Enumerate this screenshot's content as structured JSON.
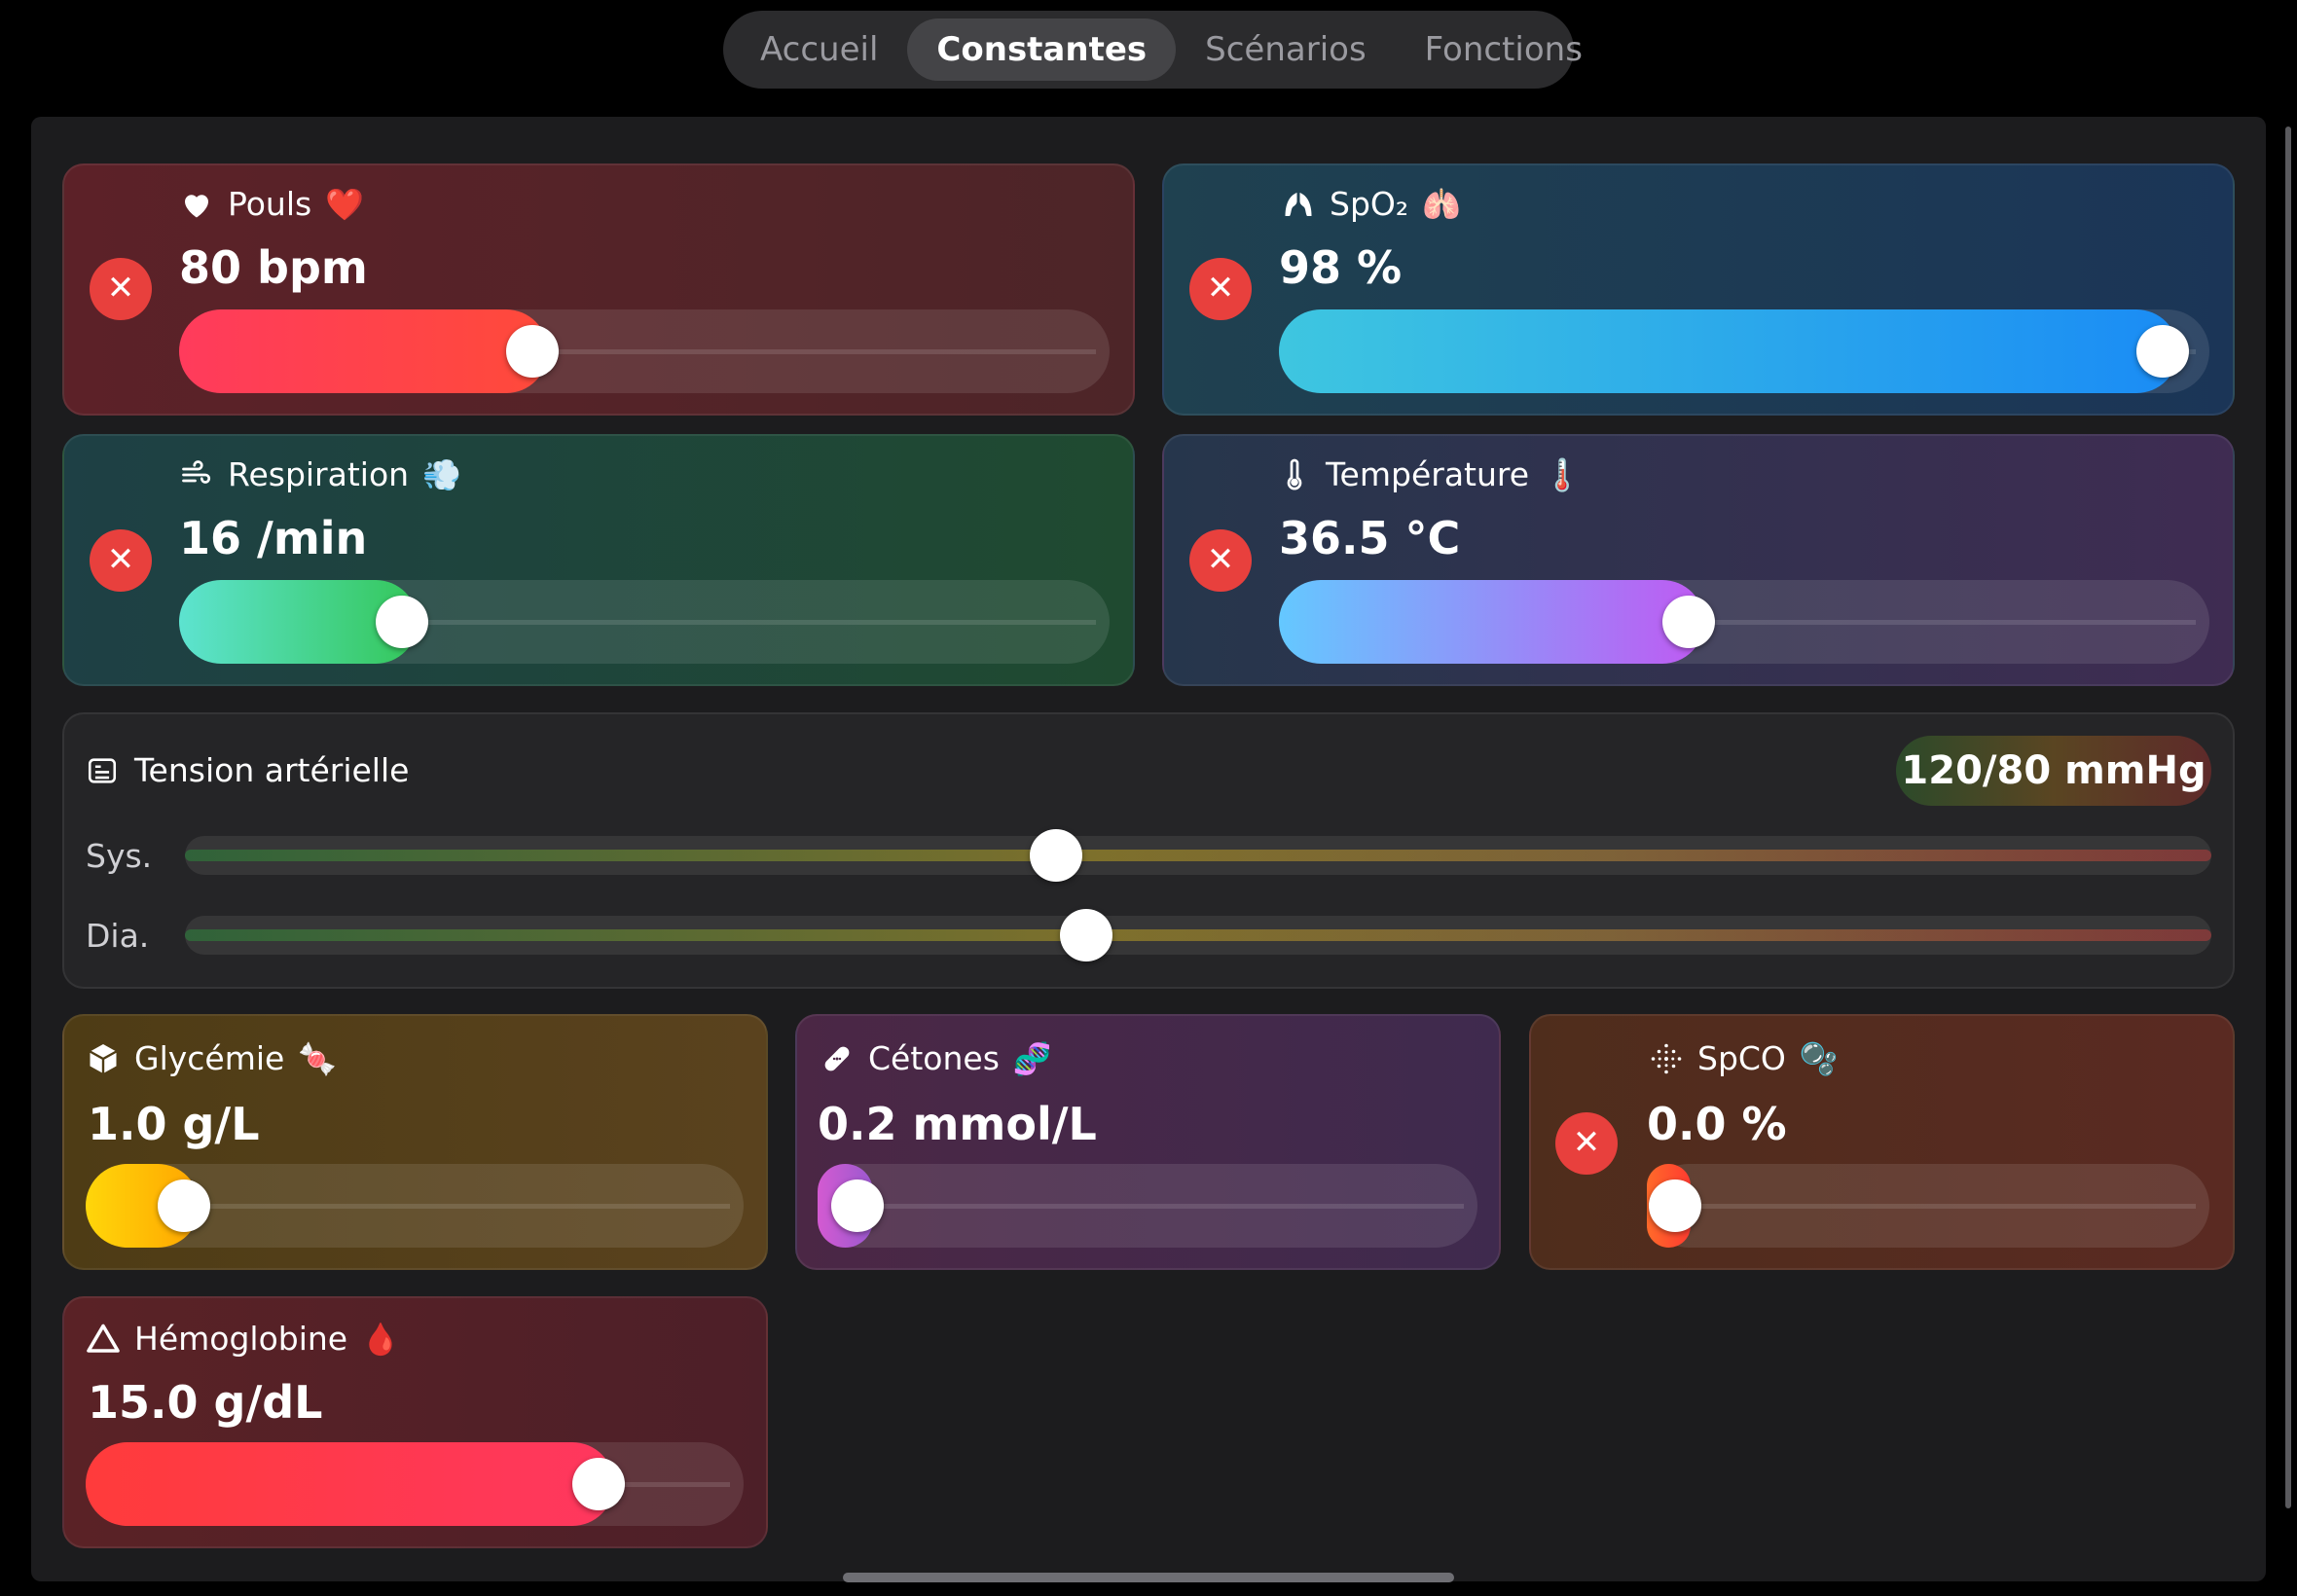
{
  "tabs": [
    {
      "label": "Accueil",
      "active": false
    },
    {
      "label": "Constantes",
      "active": true
    },
    {
      "label": "Scénarios",
      "active": false
    },
    {
      "label": "Fonctions",
      "active": false
    }
  ],
  "vitals": {
    "pouls": {
      "label": "Pouls",
      "emoji": "❤️",
      "icon": "heart-icon",
      "value": "80 bpm",
      "level": 0.38
    },
    "spo2": {
      "label": "SpO₂",
      "emoji": "🫁",
      "icon": "lungs-icon",
      "value": "98 %",
      "level": 0.95
    },
    "respiration": {
      "label": "Respiration",
      "emoji": "💨",
      "icon": "wind-icon",
      "value": "16 /min",
      "level": 0.24
    },
    "temperature": {
      "label": "Température",
      "emoji": "🌡️",
      "icon": "thermometer-icon",
      "value": "36.5 °C",
      "level": 0.44
    },
    "glycemie": {
      "label": "Glycémie",
      "emoji": "🍬",
      "icon": "cube-icon",
      "value": "1.0 g/L",
      "level": 0.15
    },
    "cetones": {
      "label": "Cétones",
      "emoji": "🧬",
      "icon": "bandage-icon",
      "value": "0.2 mmol/L",
      "level": 0.06
    },
    "spco": {
      "label": "SpCO",
      "emoji": "🫧",
      "icon": "particles-icon",
      "value": "0.0 %",
      "level": 0.05
    },
    "hemoglobine": {
      "label": "Hémoglobine",
      "emoji": "🩸",
      "icon": "warning-icon",
      "value": "15.0 g/dL",
      "level": 0.78
    }
  },
  "blood_pressure": {
    "label": "Tension artérielle",
    "icon": "list-card-icon",
    "value": "120/80 mmHg",
    "sys_label": "Sys.",
    "dia_label": "Dia.",
    "sys_level": 0.43,
    "dia_level": 0.445
  },
  "colors": {
    "close_button": "#e8403d",
    "pouls_fill": "#ff3b5c",
    "spo2_fill": "#1a8cf5",
    "respiration_fill": "#34c759",
    "temperature_fill": "#bf5af2",
    "glycemie_fill": "#ffc400",
    "hemoglobine_fill": "#ff3b4f"
  }
}
